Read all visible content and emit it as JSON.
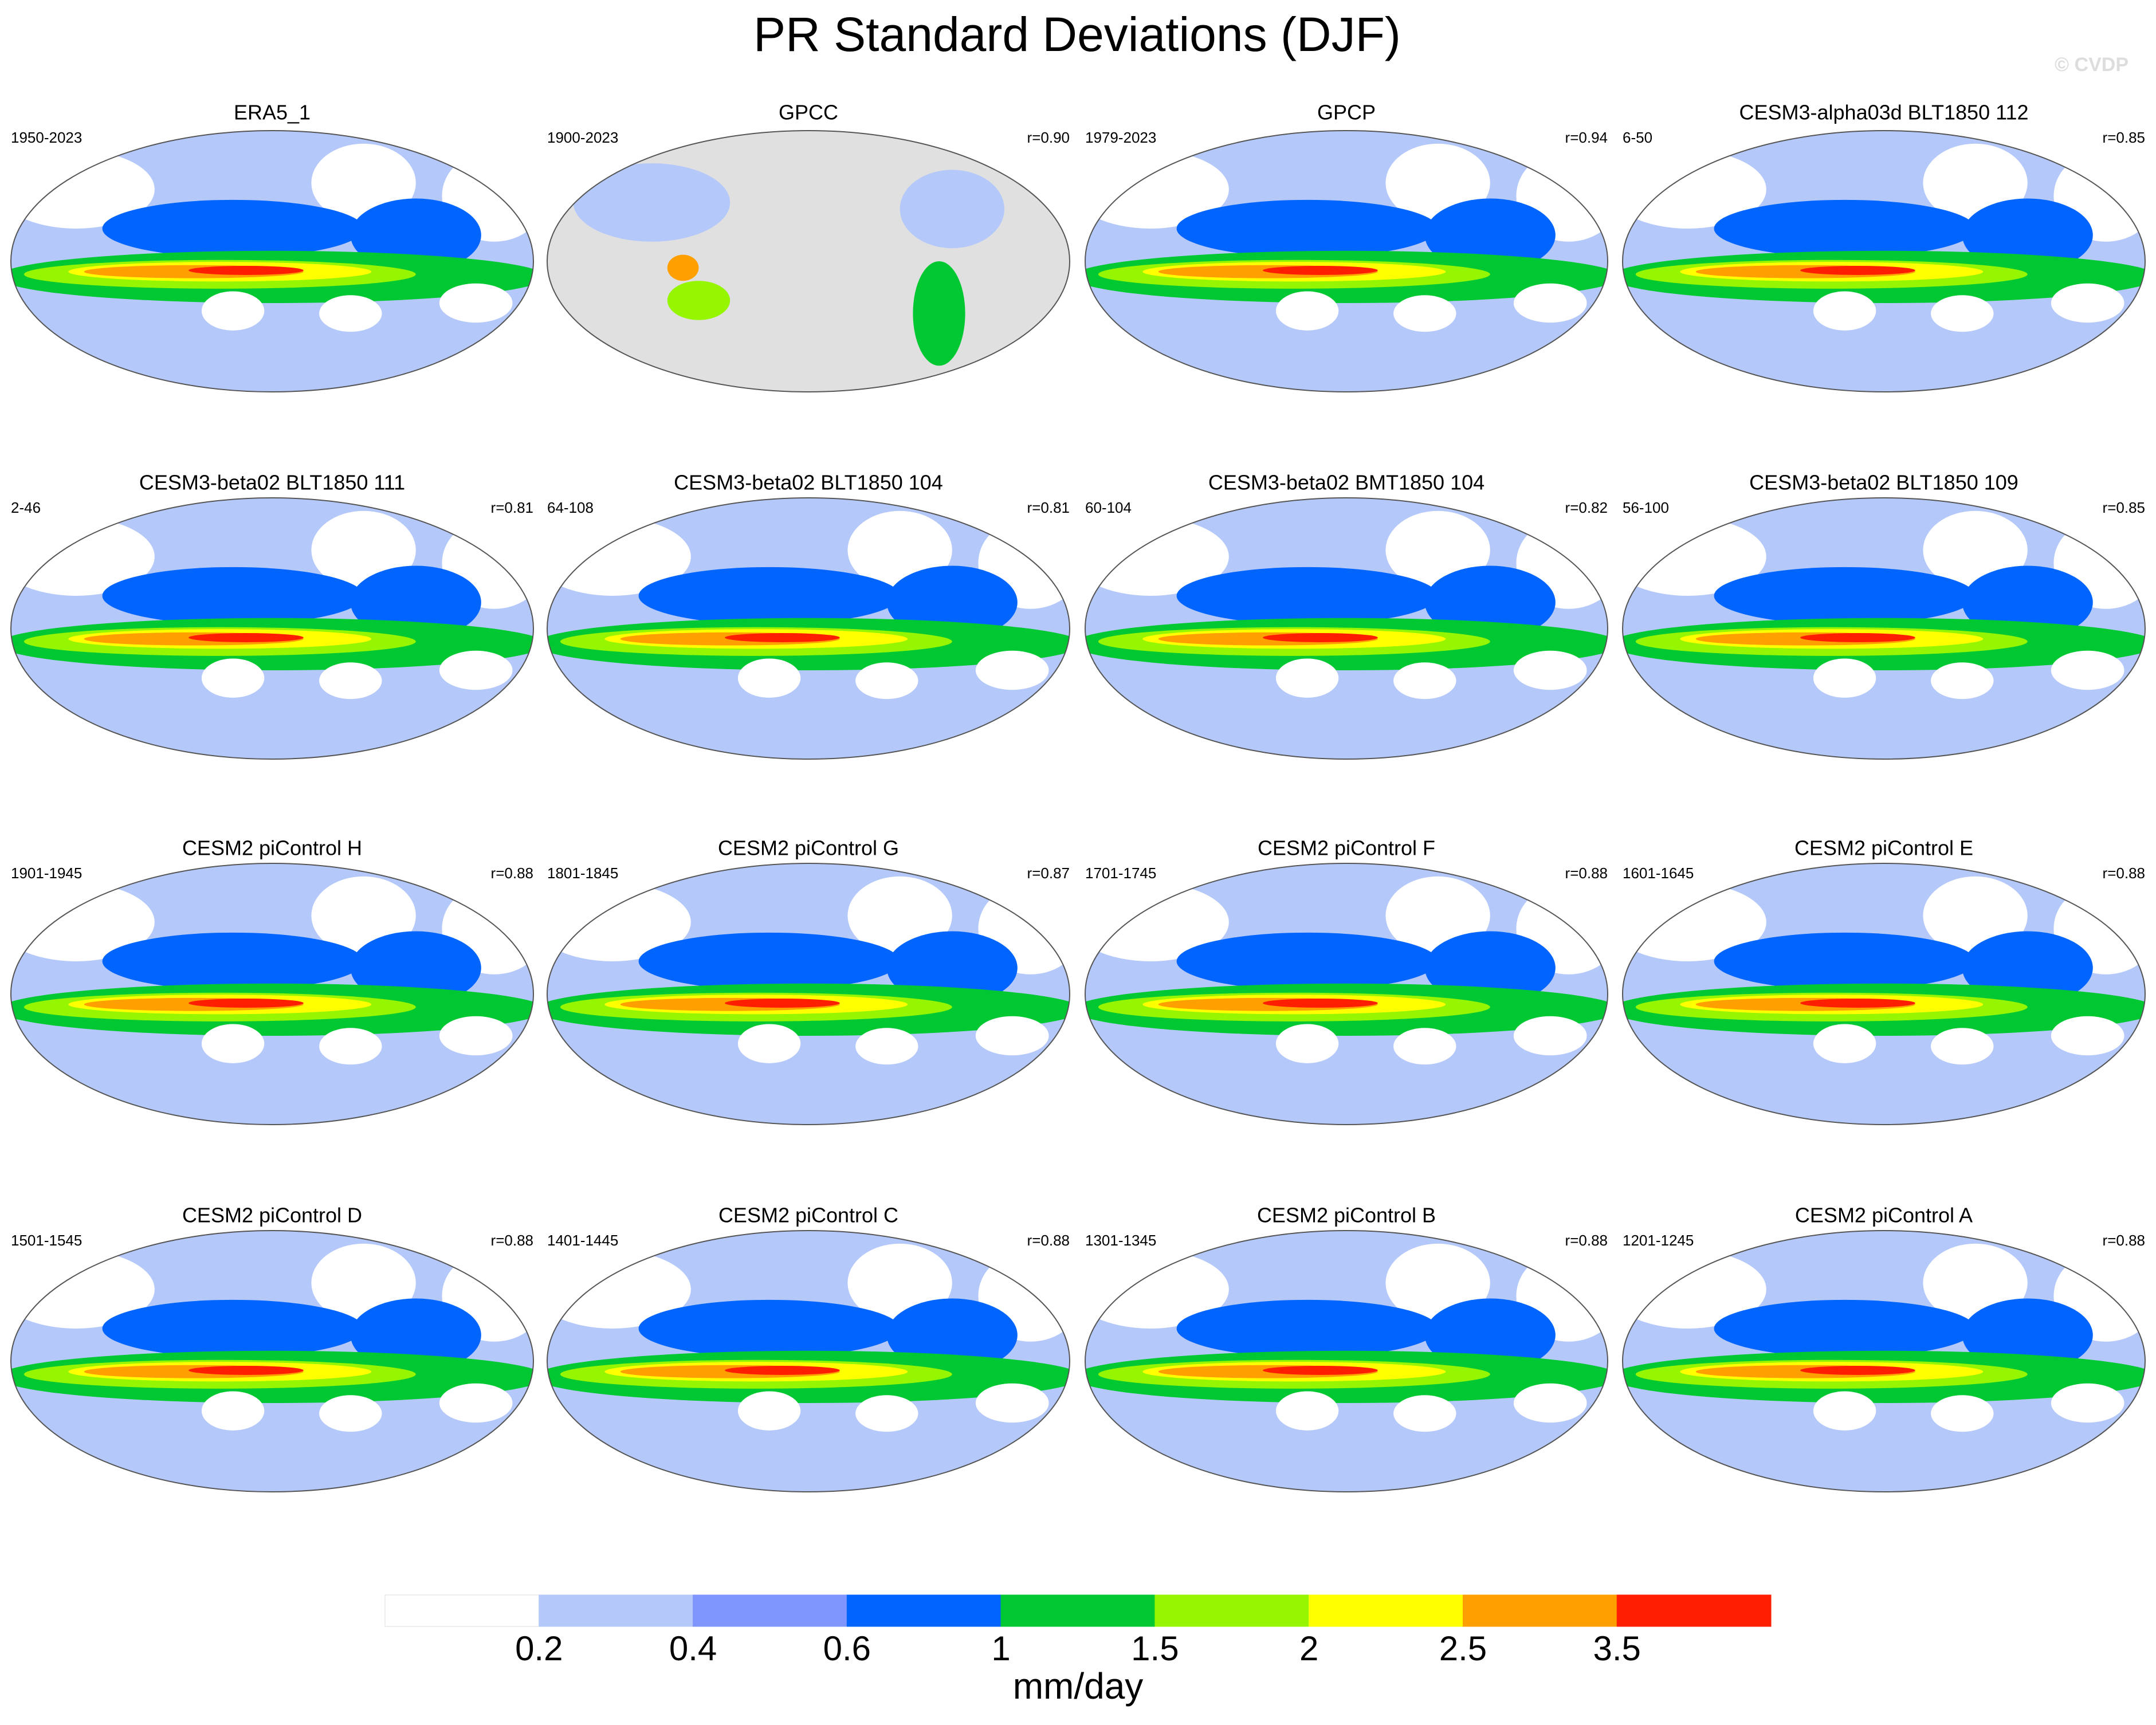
{
  "title": "PR Standard Deviations (DJF)",
  "watermark": "© CVDP",
  "panels": [
    {
      "title": "ERA5_1",
      "period": "1950-2023"
    },
    {
      "title": "GPCC",
      "period": "1900-2023",
      "r": "r=0.90"
    },
    {
      "title": "GPCP",
      "period": "1979-2023",
      "r": "r=0.94"
    },
    {
      "title": "CESM3-alpha03d BLT1850 112",
      "period": "6-50",
      "r": "r=0.85"
    },
    {
      "title": "CESM3-beta02 BLT1850 111",
      "period": "2-46",
      "r": "r=0.81"
    },
    {
      "title": "CESM3-beta02 BLT1850 104",
      "period": "64-108",
      "r": "r=0.81"
    },
    {
      "title": "CESM3-beta02 BMT1850 104",
      "period": "60-104",
      "r": "r=0.82"
    },
    {
      "title": "CESM3-beta02 BLT1850 109",
      "period": "56-100",
      "r": "r=0.85"
    },
    {
      "title": "CESM2 piControl H",
      "period": "1901-1945",
      "r": "r=0.88"
    },
    {
      "title": "CESM2 piControl G",
      "period": "1801-1845",
      "r": "r=0.87"
    },
    {
      "title": "CESM2 piControl F",
      "period": "1701-1745",
      "r": "r=0.88"
    },
    {
      "title": "CESM2 piControl E",
      "period": "1601-1645",
      "r": "r=0.88"
    },
    {
      "title": "CESM2 piControl D",
      "period": "1501-1545",
      "r": "r=0.88"
    },
    {
      "title": "CESM2 piControl C",
      "period": "1401-1445",
      "r": "r=0.88"
    },
    {
      "title": "CESM2 piControl B",
      "period": "1301-1345",
      "r": "r=0.88"
    },
    {
      "title": "CESM2 piControl A",
      "period": "1201-1245",
      "r": "r=0.88"
    }
  ],
  "colorbar": {
    "label": "mm/day",
    "colors": [
      "#ffffff",
      "#b4c8fa",
      "#7f96ff",
      "#0064ff",
      "#00c832",
      "#96f500",
      "#ffff00",
      "#ffa000",
      "#ff1e00"
    ],
    "ticks": [
      "0.2",
      "0.4",
      "0.6",
      "1",
      "1.5",
      "2",
      "2.5",
      "3.5"
    ]
  }
}
